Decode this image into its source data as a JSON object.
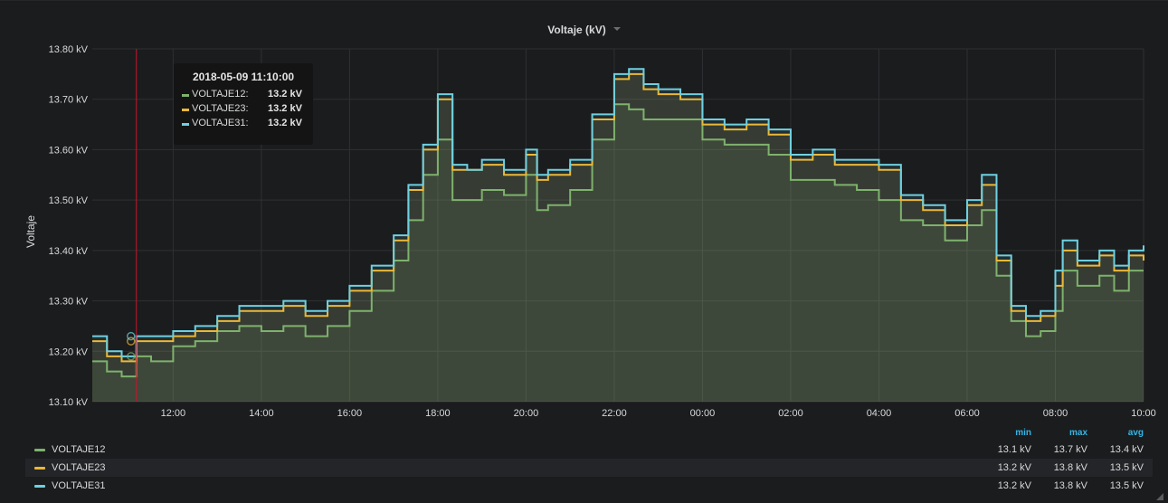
{
  "panel": {
    "title": "Voltaje (kV)"
  },
  "chart_data": {
    "type": "line",
    "title": "Voltaje (kV)",
    "ylabel": "Voltaje",
    "xlabel": "",
    "ylim": [
      13.1,
      13.8
    ],
    "x_ticks": [
      "12:00",
      "14:00",
      "16:00",
      "18:00",
      "20:00",
      "22:00",
      "00:00",
      "02:00",
      "04:00",
      "06:00",
      "08:00",
      "10:00"
    ],
    "y_ticks": [
      "13.10 kV",
      "13.20 kV",
      "13.30 kV",
      "13.40 kV",
      "13.50 kV",
      "13.60 kV",
      "13.70 kV",
      "13.80 kV"
    ],
    "x_times": [
      "10:10",
      "10:30",
      "10:50",
      "11:10",
      "11:30",
      "12:00",
      "12:30",
      "13:00",
      "13:30",
      "14:00",
      "14:30",
      "15:00",
      "15:30",
      "16:00",
      "16:30",
      "17:00",
      "17:20",
      "17:40",
      "18:00",
      "18:20",
      "18:40",
      "19:00",
      "19:30",
      "20:00",
      "20:15",
      "20:30",
      "21:00",
      "21:30",
      "22:00",
      "22:20",
      "22:40",
      "23:00",
      "23:30",
      "00:00",
      "00:30",
      "01:00",
      "01:30",
      "02:00",
      "02:30",
      "03:00",
      "03:30",
      "04:00",
      "04:30",
      "05:00",
      "05:30",
      "06:00",
      "06:20",
      "06:40",
      "07:00",
      "07:20",
      "07:40",
      "08:00",
      "08:10",
      "08:30",
      "09:00",
      "09:20",
      "09:40",
      "10:00"
    ],
    "series": [
      {
        "name": "VOLTAJE12",
        "color": "#7eb26d",
        "values": [
          13.18,
          13.16,
          13.15,
          13.19,
          13.18,
          13.21,
          13.22,
          13.24,
          13.25,
          13.24,
          13.25,
          13.23,
          13.25,
          13.28,
          13.32,
          13.38,
          13.46,
          13.55,
          13.62,
          13.5,
          13.5,
          13.52,
          13.51,
          13.55,
          13.48,
          13.49,
          13.52,
          13.62,
          13.69,
          13.68,
          13.66,
          13.66,
          13.66,
          13.62,
          13.61,
          13.61,
          13.59,
          13.54,
          13.54,
          13.53,
          13.52,
          13.5,
          13.46,
          13.45,
          13.42,
          13.45,
          13.48,
          13.35,
          13.26,
          13.23,
          13.24,
          13.28,
          13.36,
          13.33,
          13.35,
          13.32,
          13.36,
          13.36
        ]
      },
      {
        "name": "VOLTAJE23",
        "color": "#eab839",
        "values": [
          13.22,
          13.19,
          13.18,
          13.22,
          13.22,
          13.23,
          13.24,
          13.26,
          13.28,
          13.28,
          13.29,
          13.27,
          13.29,
          13.32,
          13.36,
          13.42,
          13.52,
          13.6,
          13.7,
          13.56,
          13.56,
          13.57,
          13.55,
          13.59,
          13.54,
          13.55,
          13.57,
          13.66,
          13.74,
          13.75,
          13.72,
          13.71,
          13.7,
          13.65,
          13.64,
          13.65,
          13.63,
          13.58,
          13.59,
          13.57,
          13.57,
          13.56,
          13.5,
          13.48,
          13.45,
          13.49,
          13.53,
          13.38,
          13.28,
          13.26,
          13.27,
          13.33,
          13.4,
          13.37,
          13.39,
          13.36,
          13.39,
          13.38
        ]
      },
      {
        "name": "VOLTAJE31",
        "color": "#6ed0e0",
        "values": [
          13.23,
          13.2,
          13.19,
          13.23,
          13.23,
          13.24,
          13.25,
          13.27,
          13.29,
          13.29,
          13.3,
          13.28,
          13.3,
          13.33,
          13.37,
          13.43,
          13.53,
          13.61,
          13.71,
          13.57,
          13.56,
          13.58,
          13.56,
          13.6,
          13.55,
          13.56,
          13.58,
          13.67,
          13.75,
          13.76,
          13.73,
          13.72,
          13.71,
          13.66,
          13.65,
          13.66,
          13.64,
          13.59,
          13.6,
          13.58,
          13.58,
          13.57,
          13.51,
          13.49,
          13.46,
          13.5,
          13.55,
          13.39,
          13.29,
          13.27,
          13.28,
          13.36,
          13.42,
          13.38,
          13.4,
          13.37,
          13.4,
          13.41
        ]
      }
    ],
    "crosshair_time": "11:10",
    "tooltip": {
      "time": "2018-05-09 11:10:00",
      "rows": [
        {
          "name": "VOLTAJE12:",
          "value": "13.2 kV",
          "color": "#7eb26d"
        },
        {
          "name": "VOLTAJE23:",
          "value": "13.2 kV",
          "color": "#eab839"
        },
        {
          "name": "VOLTAJE31:",
          "value": "13.2 kV",
          "color": "#6ed0e0"
        }
      ]
    },
    "legend": {
      "placement": "bottom",
      "headers": {
        "min": "min",
        "max": "max",
        "avg": "avg"
      },
      "rows": [
        {
          "name": "VOLTAJE12",
          "color": "#7eb26d",
          "min": "13.1 kV",
          "max": "13.7 kV",
          "avg": "13.4 kV"
        },
        {
          "name": "VOLTAJE23",
          "color": "#eab839",
          "min": "13.2 kV",
          "max": "13.8 kV",
          "avg": "13.5 kV"
        },
        {
          "name": "VOLTAJE31",
          "color": "#6ed0e0",
          "min": "13.2 kV",
          "max": "13.8 kV",
          "avg": "13.5 kV"
        }
      ]
    },
    "grid": true,
    "fill_area": true
  }
}
